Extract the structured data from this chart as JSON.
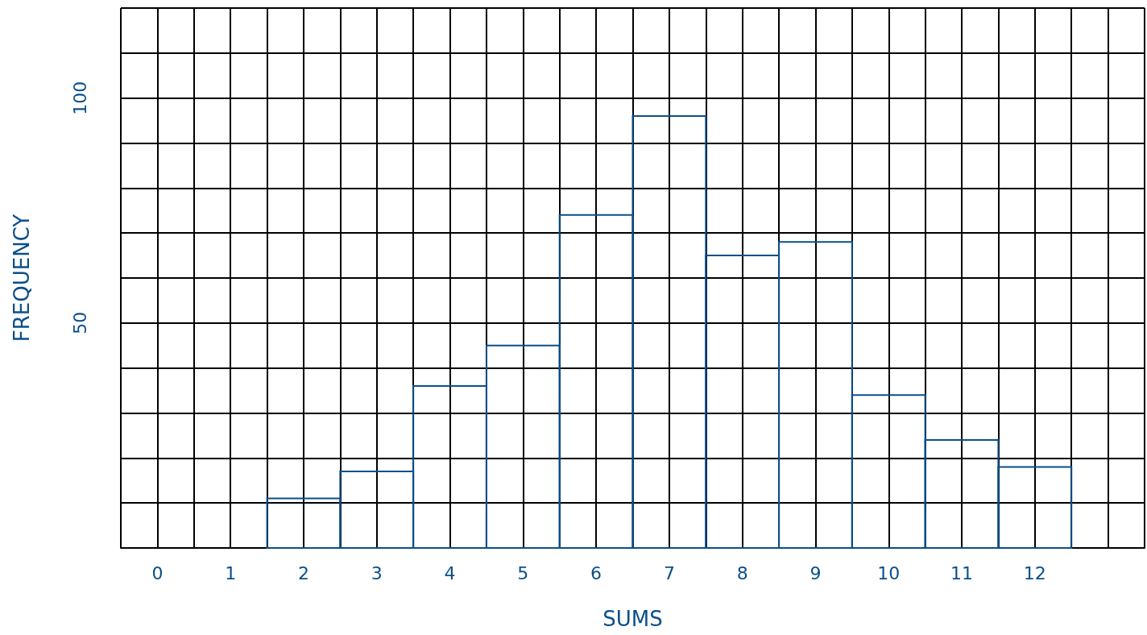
{
  "chart_data": {
    "type": "histogram",
    "xlabel": "SUMS",
    "ylabel": "FREQUENCY",
    "bins": [
      1.5,
      2.5,
      3.5,
      4.5,
      5.5,
      6.5,
      7.5,
      8.5,
      9.5,
      10.5,
      11.5,
      12.5
    ],
    "values": [
      11,
      17,
      36,
      45,
      74,
      96,
      65,
      68,
      34,
      24,
      18
    ],
    "color": "#0b4f8a",
    "xlim": [
      -0.5,
      13.5
    ],
    "xticks": [
      {
        "value": -0.5,
        "label": null
      },
      0,
      {
        "value": 0.5,
        "label": null
      },
      1,
      {
        "value": 1.5,
        "label": null
      },
      2,
      {
        "value": 2.5,
        "label": null
      },
      3,
      {
        "value": 3.5,
        "label": null
      },
      4,
      {
        "value": 4.5,
        "label": null
      },
      5,
      {
        "value": 5.5,
        "label": null
      },
      6,
      {
        "value": 6.5,
        "label": null
      },
      7,
      {
        "value": 7.5,
        "label": null
      },
      8,
      {
        "value": 8.5,
        "label": null
      },
      9,
      {
        "value": 9.5,
        "label": null
      },
      10,
      {
        "value": 10.5,
        "label": null
      },
      11,
      {
        "value": 11.5,
        "label": null
      },
      12,
      {
        "value": 12.5,
        "label": null
      },
      {
        "value": 13,
        "label": null
      },
      {
        "value": 13.5,
        "label": null
      }
    ],
    "ylim": [
      0,
      120
    ],
    "yticks": [
      {
        "value": 0,
        "label": null
      },
      {
        "value": 10,
        "label": null
      },
      {
        "value": 20,
        "label": null
      },
      {
        "value": 30,
        "label": null
      },
      {
        "value": 40,
        "label": null
      },
      50,
      {
        "value": 60,
        "label": null
      },
      {
        "value": 70,
        "label": null
      },
      {
        "value": 80,
        "label": null
      },
      {
        "value": 90,
        "label": null
      },
      100,
      {
        "value": 110,
        "label": null
      },
      {
        "value": 120,
        "label": null
      }
    ],
    "grid": true
  }
}
